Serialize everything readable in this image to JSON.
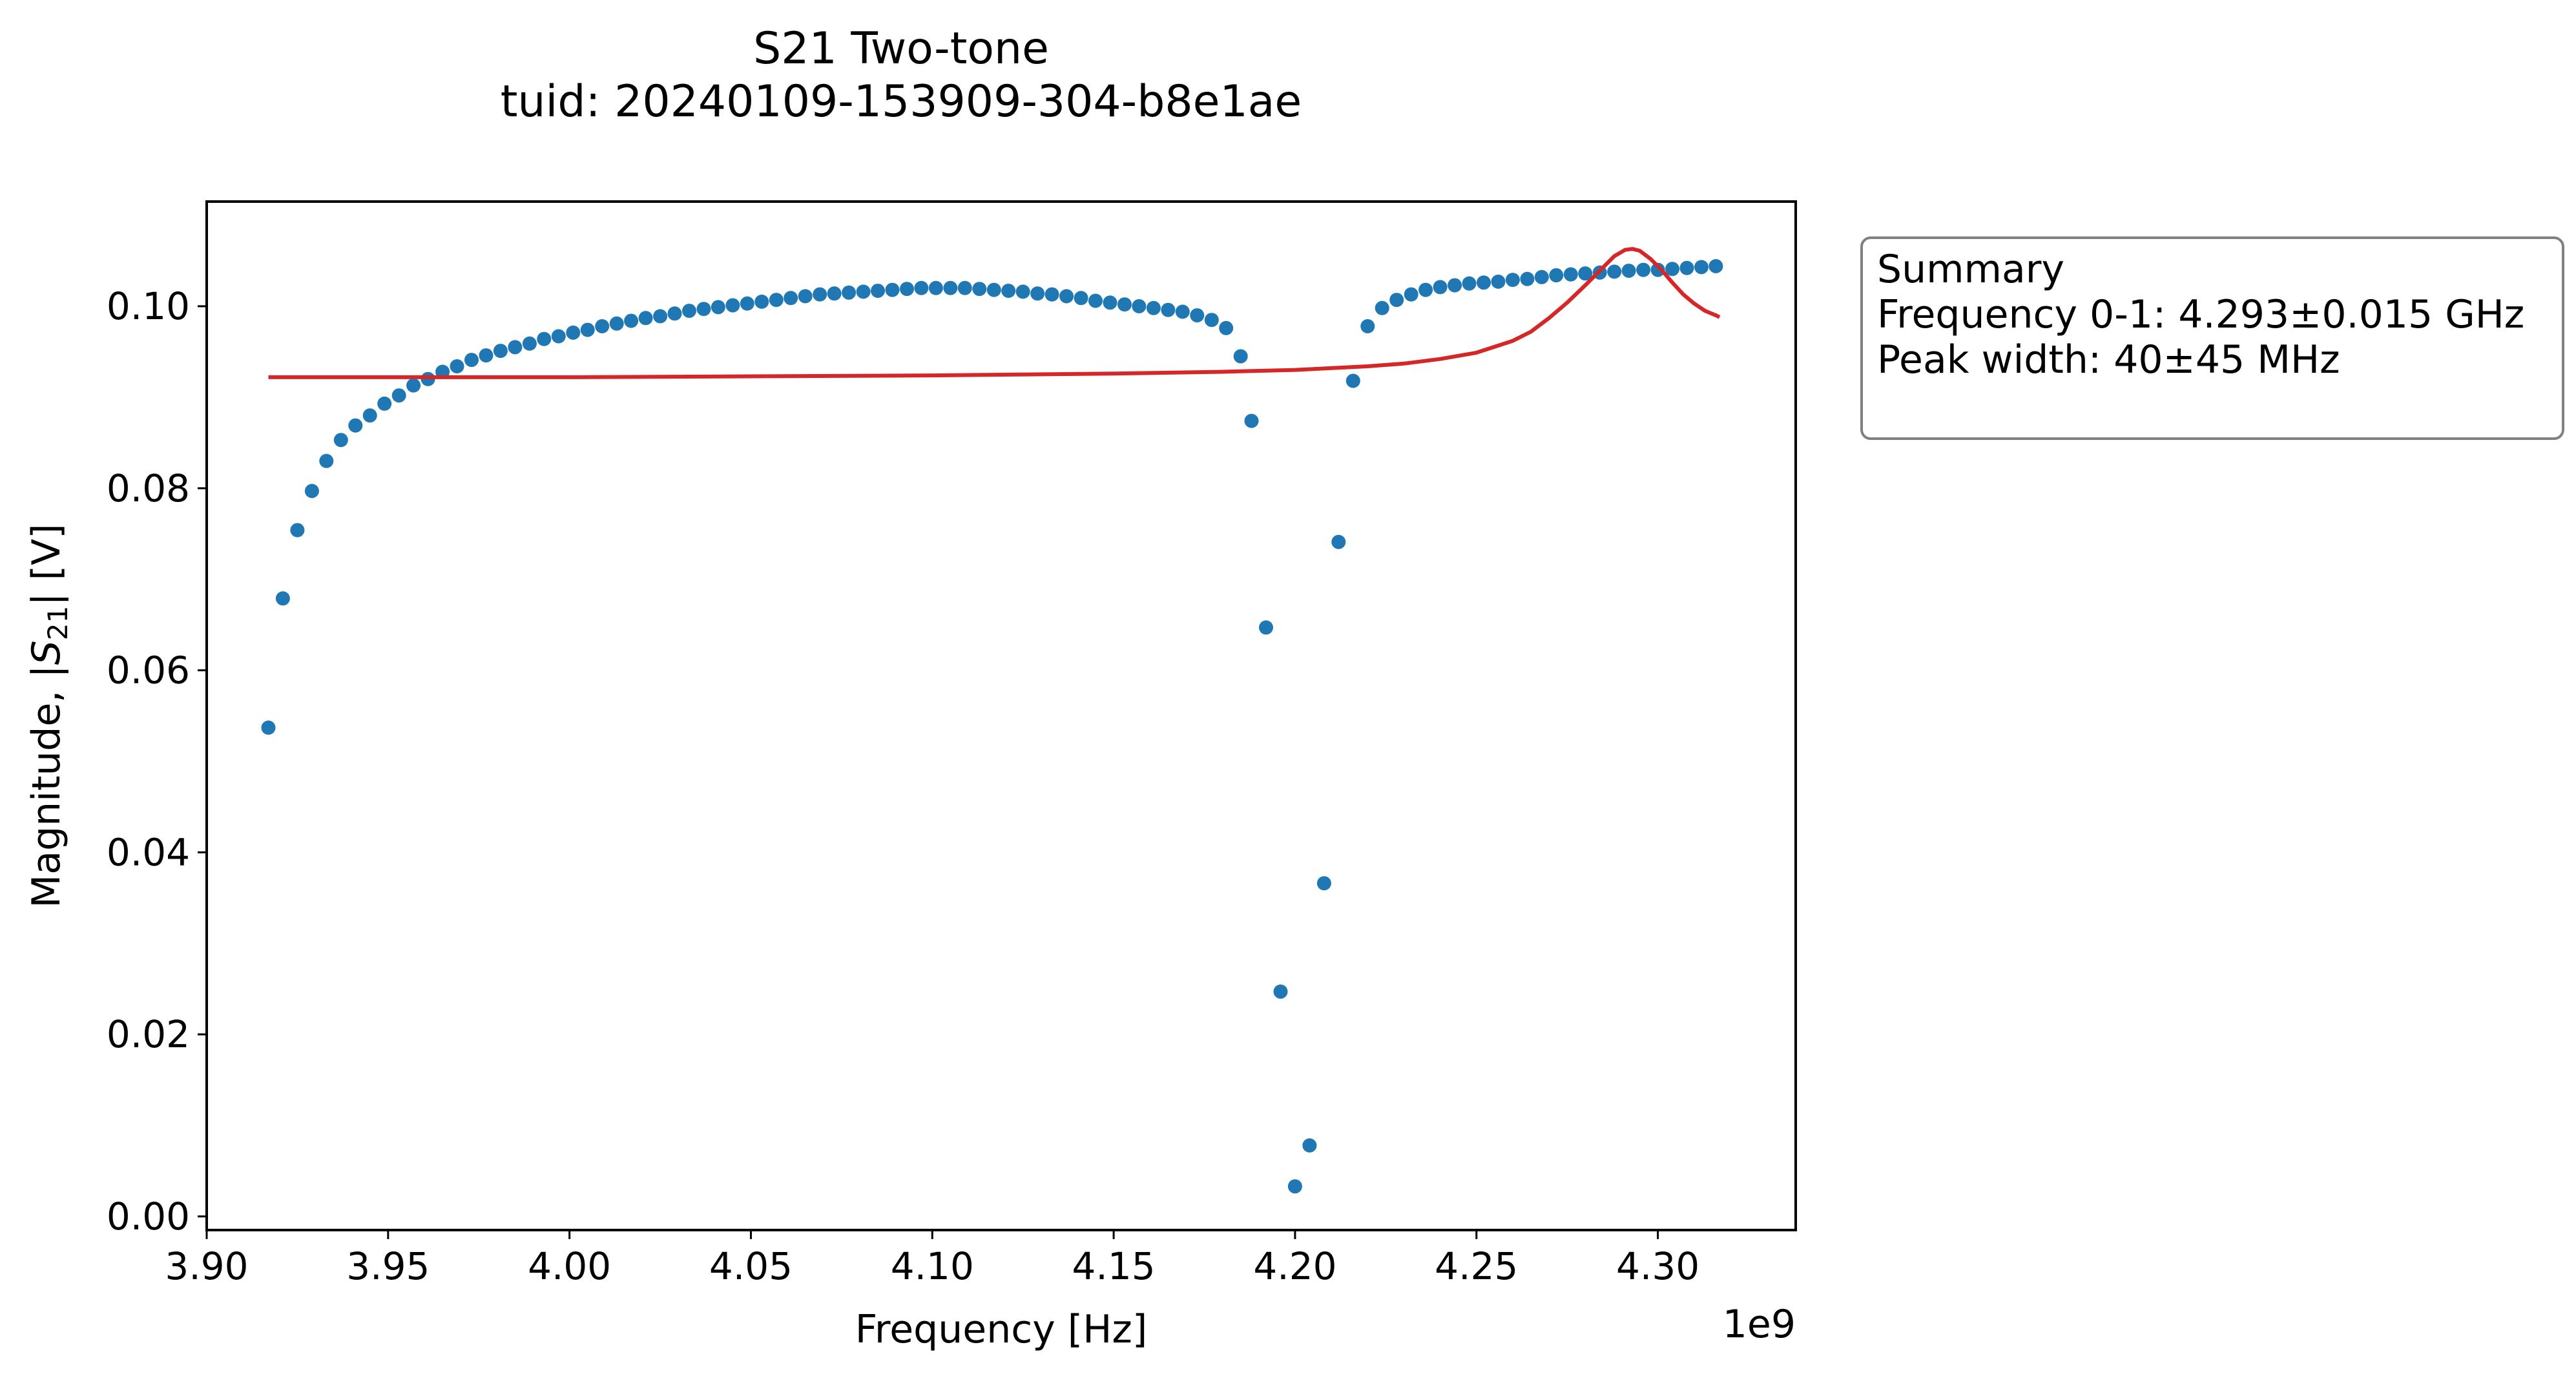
{
  "chart_data": {
    "type": "scatter",
    "title": "S21 Two-tone",
    "subtitle": "tuid: 20240109-153909-304-b8e1ae",
    "xlabel": "Frequency [Hz]",
    "ylabel_prefix": "Magnitude, |",
    "ylabel_symbol": "S",
    "ylabel_subscript": "21",
    "ylabel_suffix": "| [V]",
    "x_offset_label": "1e9",
    "xlim": [
      3.9,
      4.338
    ],
    "ylim": [
      -0.0015,
      0.1115
    ],
    "x_ticks": [
      3.9,
      3.95,
      4.0,
      4.05,
      4.1,
      4.15,
      4.2,
      4.25,
      4.3
    ],
    "x_tick_labels": [
      "3.90",
      "3.95",
      "4.00",
      "4.05",
      "4.10",
      "4.15",
      "4.20",
      "4.25",
      "4.30"
    ],
    "y_ticks": [
      0.0,
      0.02,
      0.04,
      0.06,
      0.08,
      0.1
    ],
    "y_tick_labels": [
      "0.00",
      "0.02",
      "0.04",
      "0.06",
      "0.08",
      "0.10"
    ],
    "grid": false,
    "series": [
      {
        "kind": "points",
        "color": "#1f77b4",
        "x": [
          3.917,
          3.921,
          3.925,
          3.929,
          3.933,
          3.937,
          3.941,
          3.945,
          3.949,
          3.953,
          3.957,
          3.961,
          3.965,
          3.969,
          3.973,
          3.977,
          3.981,
          3.985,
          3.989,
          3.993,
          3.997,
          4.001,
          4.005,
          4.009,
          4.013,
          4.017,
          4.021,
          4.025,
          4.029,
          4.033,
          4.037,
          4.041,
          4.045,
          4.049,
          4.053,
          4.057,
          4.061,
          4.065,
          4.069,
          4.073,
          4.077,
          4.081,
          4.085,
          4.089,
          4.093,
          4.097,
          4.101,
          4.105,
          4.109,
          4.113,
          4.117,
          4.121,
          4.125,
          4.129,
          4.133,
          4.137,
          4.141,
          4.145,
          4.149,
          4.153,
          4.157,
          4.161,
          4.165,
          4.169,
          4.173,
          4.177,
          4.181,
          4.185,
          4.188,
          4.192,
          4.196,
          4.2,
          4.204,
          4.208,
          4.212,
          4.216,
          4.22,
          4.224,
          4.228,
          4.232,
          4.236,
          4.24,
          4.244,
          4.248,
          4.252,
          4.256,
          4.26,
          4.264,
          4.268,
          4.272,
          4.276,
          4.28,
          4.284,
          4.288,
          4.292,
          4.296,
          4.3,
          4.304,
          4.308,
          4.312,
          4.316
        ],
        "y": [
          0.0537,
          0.0679,
          0.0754,
          0.0797,
          0.083,
          0.0853,
          0.0869,
          0.088,
          0.0893,
          0.0902,
          0.0913,
          0.092,
          0.0928,
          0.0934,
          0.0941,
          0.0946,
          0.0951,
          0.0955,
          0.0959,
          0.0964,
          0.0967,
          0.0971,
          0.0974,
          0.0978,
          0.0981,
          0.0984,
          0.0987,
          0.0989,
          0.0992,
          0.0995,
          0.0997,
          0.0999,
          0.1001,
          0.1003,
          0.1005,
          0.1007,
          0.1009,
          0.1011,
          0.1013,
          0.1014,
          0.1015,
          0.1016,
          0.1017,
          0.1018,
          0.1019,
          0.102,
          0.102,
          0.102,
          0.102,
          0.1019,
          0.1018,
          0.1017,
          0.1016,
          0.1014,
          0.1013,
          0.1011,
          0.1009,
          0.1006,
          0.1004,
          0.1002,
          0.1,
          0.0998,
          0.0996,
          0.0994,
          0.099,
          0.0985,
          0.0976,
          0.0945,
          0.0874,
          0.0647,
          0.0247,
          0.0033,
          0.0078,
          0.0366,
          0.0741,
          0.0918,
          0.0978,
          0.0998,
          0.1007,
          0.1013,
          0.1018,
          0.1021,
          0.1023,
          0.1025,
          0.1026,
          0.1027,
          0.1029,
          0.103,
          0.1032,
          0.1034,
          0.1035,
          0.1036,
          0.1037,
          0.1038,
          0.1039,
          0.104,
          0.104,
          0.1041,
          0.1042,
          0.1043,
          0.1044
        ]
      },
      {
        "kind": "fit-line",
        "color": "#d62728",
        "x": [
          3.917,
          3.95,
          4.0,
          4.05,
          4.1,
          4.15,
          4.18,
          4.2,
          4.22,
          4.23,
          4.24,
          4.25,
          4.26,
          4.265,
          4.27,
          4.275,
          4.28,
          4.285,
          4.288,
          4.291,
          4.293,
          4.295,
          4.298,
          4.301,
          4.304,
          4.307,
          4.31,
          4.313,
          4.316,
          4.317
        ],
        "y": [
          0.0922,
          0.0922,
          0.0922,
          0.0923,
          0.0924,
          0.0926,
          0.0928,
          0.093,
          0.0934,
          0.0937,
          0.0942,
          0.0949,
          0.0962,
          0.0972,
          0.0987,
          0.1004,
          0.1023,
          0.1043,
          0.1055,
          0.1062,
          0.1063,
          0.1061,
          0.1052,
          0.104,
          0.1026,
          0.1013,
          0.1003,
          0.0995,
          0.099,
          0.0988
        ]
      }
    ]
  },
  "summary": {
    "heading": "Summary",
    "frequency": "Frequency 0-1: 4.293±0.015 GHz",
    "peak_width": "Peak width: 40±45 MHz"
  }
}
